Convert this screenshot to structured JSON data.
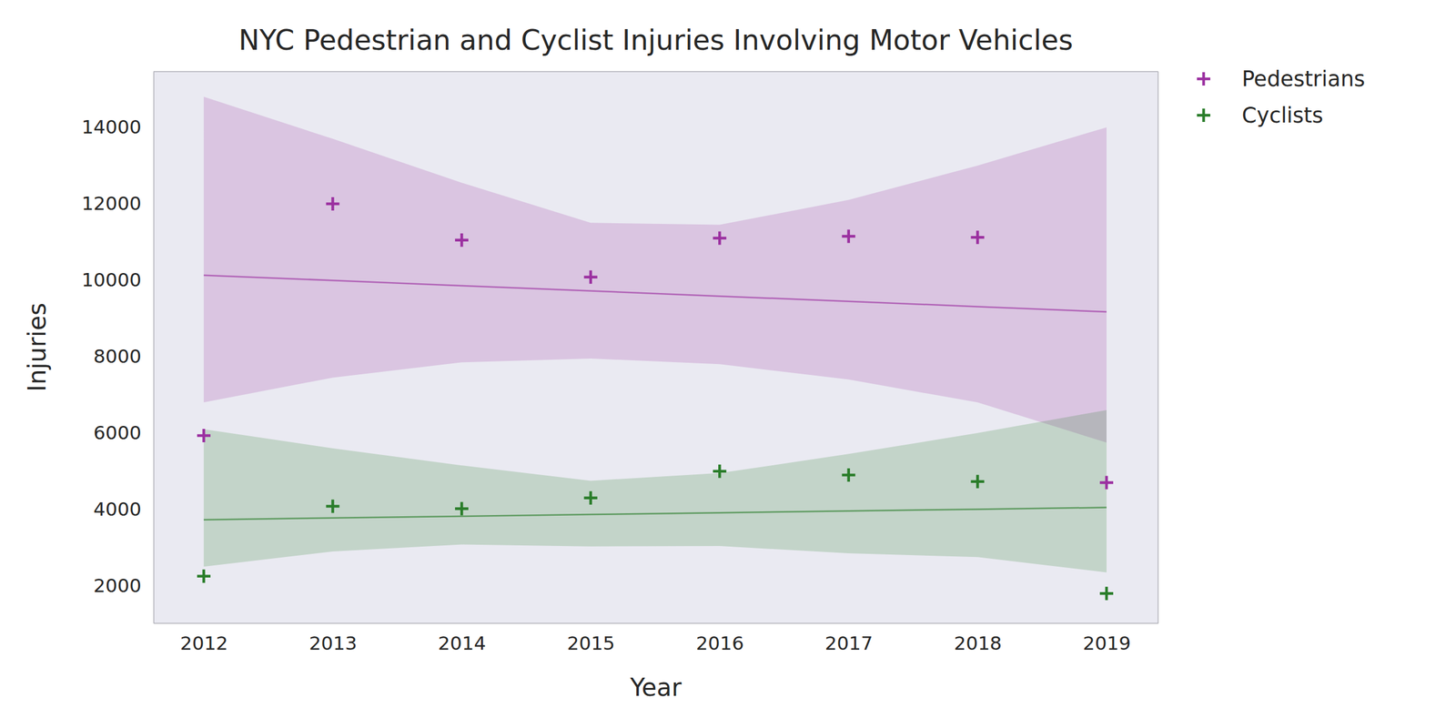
{
  "chart_data": {
    "type": "scatter",
    "title": "NYC Pedestrian and Cyclist Injuries Involving Motor Vehicles",
    "x_label": "Year",
    "y_label": "Injuries",
    "x": [
      2012,
      2013,
      2014,
      2015,
      2016,
      2017,
      2018,
      2019
    ],
    "series": [
      {
        "name": "Pedestrians",
        "color": "#9b30a0",
        "marker": "plus",
        "values": [
          5930,
          12000,
          11050,
          10080,
          11100,
          11150,
          11120,
          4700
        ],
        "trend": [
          10130,
          9993,
          9856,
          9719,
          9582,
          9445,
          9308,
          9170
        ],
        "ci_lower": [
          6800,
          7450,
          7850,
          7950,
          7800,
          7400,
          6800,
          5750
        ],
        "ci_upper": [
          14800,
          13700,
          12550,
          11500,
          11450,
          12100,
          13000,
          14000
        ]
      },
      {
        "name": "Cyclists",
        "color": "#2a7d2a",
        "marker": "plus",
        "values": [
          2250,
          4080,
          4020,
          4300,
          5000,
          4900,
          4730,
          1800
        ],
        "trend": [
          3730,
          3776,
          3821,
          3867,
          3913,
          3959,
          4004,
          4050
        ],
        "ci_lower": [
          2500,
          2900,
          3080,
          3030,
          3040,
          2850,
          2750,
          2350
        ],
        "ci_upper": [
          6100,
          5600,
          5150,
          4750,
          4950,
          5450,
          6000,
          6600
        ]
      }
    ],
    "xlim": [
      2011.61,
      2019.4
    ],
    "ylim": [
      1025,
      15460
    ],
    "xticks": [
      2012,
      2013,
      2014,
      2015,
      2016,
      2017,
      2018,
      2019
    ],
    "yticks": [
      2000,
      4000,
      6000,
      8000,
      10000,
      12000,
      14000
    ],
    "grid": false,
    "legend": "outside-upper-right"
  }
}
